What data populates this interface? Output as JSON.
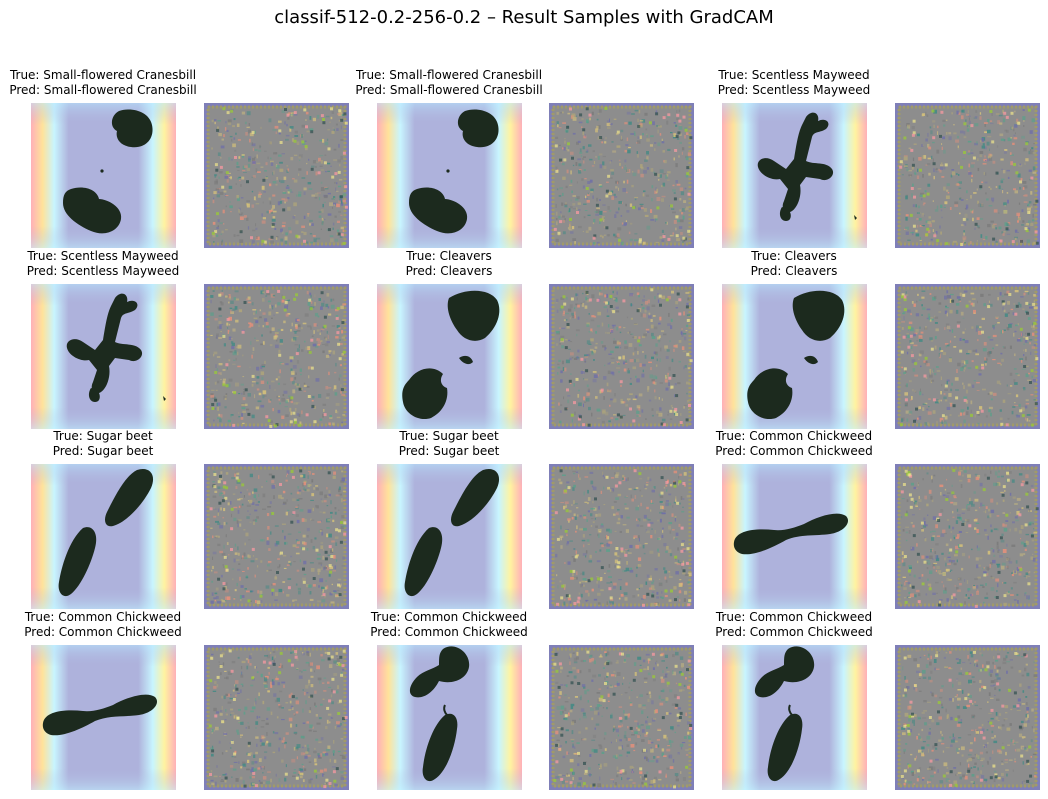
{
  "title": "classif-512-0.2-256-0.2 – Result Samples with GradCAM",
  "panels": [
    {
      "true_label": "True: Small-flowered Cranesbill",
      "pred_label": "Pred: Small-flowered Cranesbill",
      "plant": "cranesbill"
    },
    {
      "true_label": "True: Small-flowered Cranesbill",
      "pred_label": "Pred: Small-flowered Cranesbill",
      "plant": "cranesbill"
    },
    {
      "true_label": "True: Scentless Mayweed",
      "pred_label": "Pred: Scentless Mayweed",
      "plant": "mayweed"
    },
    {
      "true_label": "True: Scentless Mayweed",
      "pred_label": "Pred: Scentless Mayweed",
      "plant": "mayweed"
    },
    {
      "true_label": "True: Cleavers",
      "pred_label": "Pred: Cleavers",
      "plant": "cleavers"
    },
    {
      "true_label": "True: Cleavers",
      "pred_label": "Pred: Cleavers",
      "plant": "cleavers"
    },
    {
      "true_label": "True: Sugar beet",
      "pred_label": "Pred: Sugar beet",
      "plant": "sugarbeet"
    },
    {
      "true_label": "True: Sugar beet",
      "pred_label": "Pred: Sugar beet",
      "plant": "sugarbeet"
    },
    {
      "true_label": "True: Common Chickweed",
      "pred_label": "Pred: Common Chickweed",
      "plant": "chickweed_flat"
    },
    {
      "true_label": "True: Common Chickweed",
      "pred_label": "Pred: Common Chickweed",
      "plant": "chickweed_flat"
    },
    {
      "true_label": "True: Common Chickweed",
      "pred_label": "Pred: Common Chickweed",
      "plant": "chickweed_tall"
    },
    {
      "true_label": "True: Common Chickweed",
      "pred_label": "Pred: Common Chickweed",
      "plant": "chickweed_tall"
    }
  ]
}
